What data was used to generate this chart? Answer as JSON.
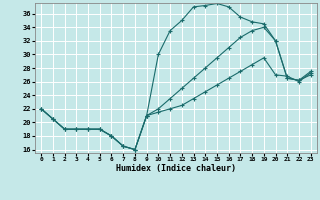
{
  "xlabel": "Humidex (Indice chaleur)",
  "bg_color": "#c5e8e8",
  "grid_color": "#ffffff",
  "line_color": "#1a6b6b",
  "xlim": [
    -0.5,
    23.5
  ],
  "ylim": [
    15.5,
    37.5
  ],
  "xticks": [
    0,
    1,
    2,
    3,
    4,
    5,
    6,
    7,
    8,
    9,
    10,
    11,
    12,
    13,
    14,
    15,
    16,
    17,
    18,
    19,
    20,
    21,
    22,
    23
  ],
  "yticks": [
    16,
    18,
    20,
    22,
    24,
    26,
    28,
    30,
    32,
    34,
    36
  ],
  "line1_y": [
    22,
    20.5,
    19,
    19,
    19,
    19,
    18,
    16.5,
    16,
    21,
    30,
    33.5,
    35,
    37,
    37.2,
    37.5,
    37,
    35.5,
    34.8,
    34.5,
    32,
    26.5,
    26.2,
    27
  ],
  "line2_y": [
    22,
    20.5,
    19,
    19,
    19,
    19,
    18,
    16.5,
    16,
    21,
    21.5,
    22,
    22.5,
    23.5,
    24.5,
    25.5,
    26.5,
    27.5,
    28.5,
    29.5,
    27,
    26.8,
    26,
    27.3
  ],
  "line3_y": [
    22,
    20.5,
    19,
    19,
    19,
    19,
    18,
    16.5,
    16,
    21,
    22,
    23.5,
    25,
    26.5,
    28,
    29.5,
    31,
    32.5,
    33.5,
    34,
    32,
    26.5,
    26.2,
    27.5
  ]
}
